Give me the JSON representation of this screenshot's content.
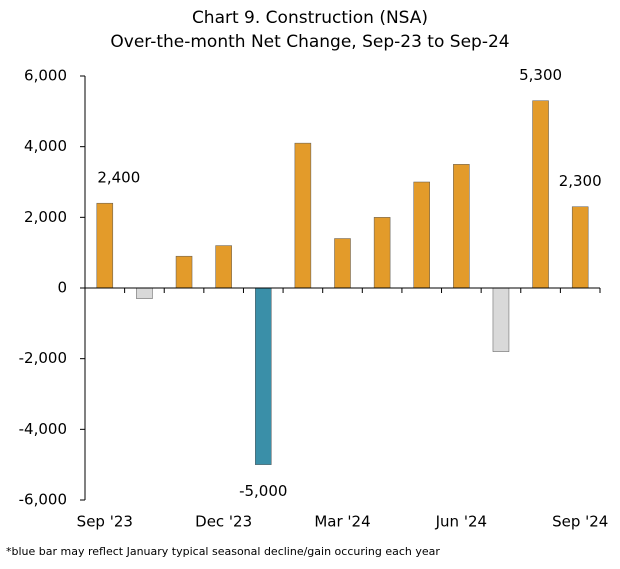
{
  "chart_data": {
    "type": "bar",
    "title": "Chart 9. Construction (NSA)",
    "subtitle": "Over-the-month Net Change, Sep-23 to Sep-24",
    "categories": [
      "Sep '23",
      null,
      null,
      "Dec '23",
      null,
      null,
      "Mar '24",
      null,
      null,
      "Jun '24",
      null,
      null,
      "Sep '24"
    ],
    "values": [
      2400,
      -300,
      900,
      1200,
      -5000,
      4100,
      1400,
      2000,
      3000,
      3500,
      -1800,
      5300,
      2300
    ],
    "value_labels": [
      "2,400",
      null,
      null,
      null,
      "-5,000",
      null,
      null,
      null,
      null,
      null,
      null,
      "5,300",
      "2,300"
    ],
    "colors": [
      "#e39b2a",
      "#d9d9d9",
      "#e39b2a",
      "#e39b2a",
      "#3a8fa8",
      "#e39b2a",
      "#e39b2a",
      "#e39b2a",
      "#e39b2a",
      "#e39b2a",
      "#d9d9d9",
      "#e39b2a",
      "#e39b2a"
    ],
    "ylim": [
      -6000,
      6000
    ],
    "yticks": [
      {
        "value": -6000,
        "label": "-6,000"
      },
      {
        "value": -4000,
        "label": "-4,000"
      },
      {
        "value": -2000,
        "label": "-2,000"
      },
      0,
      {
        "value": 2000,
        "label": "2,000"
      },
      {
        "value": 4000,
        "label": "4,000"
      },
      {
        "value": 6000,
        "label": "6,000"
      }
    ],
    "grid": false,
    "footnote": "*blue bar may reflect January typical seasonal decline/gain occuring each year"
  }
}
